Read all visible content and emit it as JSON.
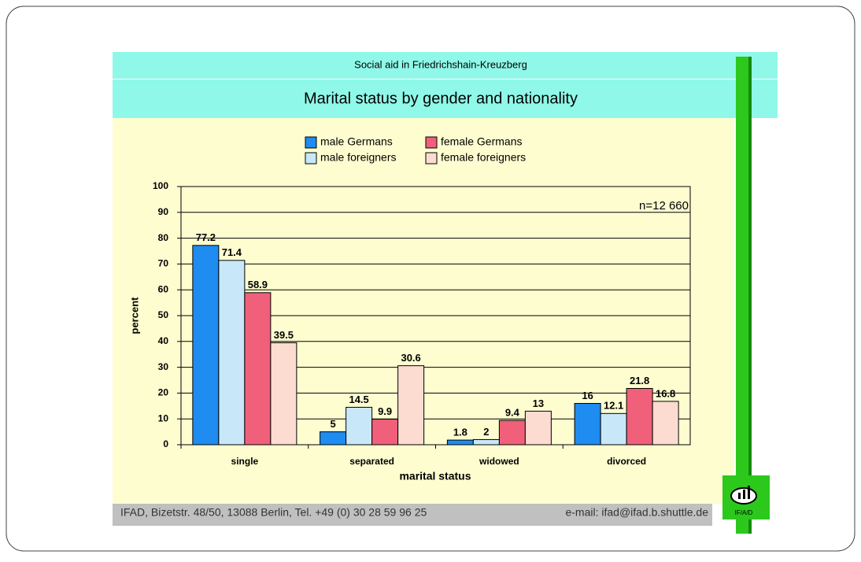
{
  "chart_data": {
    "type": "bar",
    "subtitle": "Social aid in Friedrichshain-Kreuzberg",
    "title": "Marital status by gender and nationality",
    "categories": [
      "single",
      "separated",
      "widowed",
      "divorced"
    ],
    "series": [
      {
        "name": "male Germans",
        "color": "#1e8cf0",
        "values": [
          77.2,
          5,
          1.8,
          16
        ]
      },
      {
        "name": "male foreigners",
        "color": "#c8e8fa",
        "values": [
          71.4,
          14.5,
          2,
          12.1
        ]
      },
      {
        "name": "female Germans",
        "color": "#f0607a",
        "values": [
          58.9,
          9.9,
          9.4,
          21.8
        ]
      },
      {
        "name": "female foreigners",
        "color": "#fcdcd0",
        "values": [
          39.5,
          30.6,
          13,
          16.8
        ]
      }
    ],
    "ylim": [
      0,
      100
    ],
    "yticks": [
      0,
      10,
      20,
      30,
      40,
      50,
      60,
      70,
      80,
      90,
      100
    ],
    "grid": true,
    "x_label": "marital status",
    "y_label": "percent",
    "annotation": "n=12 660"
  },
  "footer": {
    "address": "IFAD, Bizetstr. 48/50, 13088 Berlin, Tel. +49 (0) 30 28 59 96 25",
    "email": "e-mail: ifad@ifad.b.shuttle.de"
  },
  "logo": "IF/A/D"
}
